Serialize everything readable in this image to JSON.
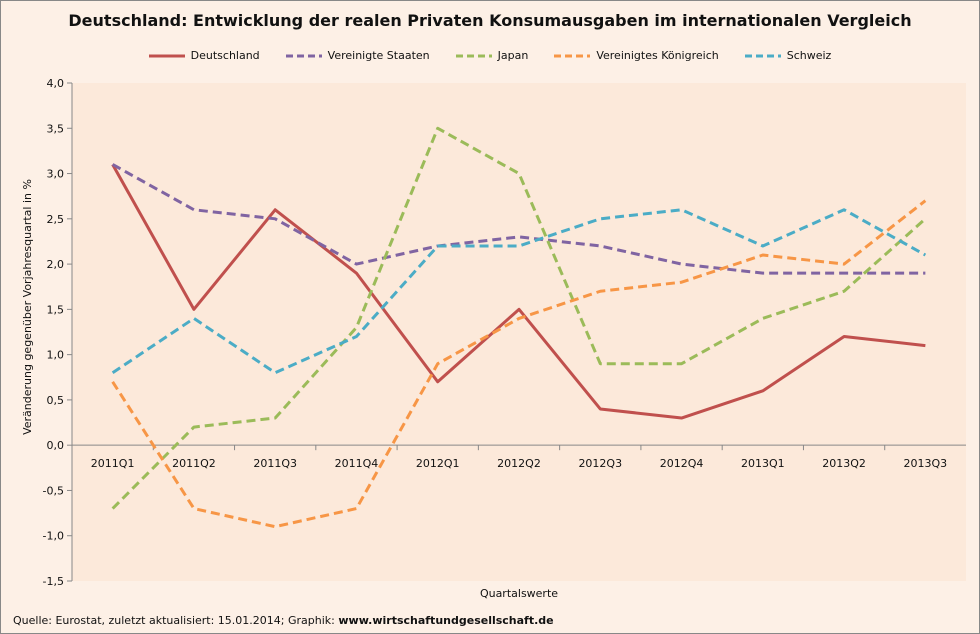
{
  "chart_data": {
    "type": "line",
    "title": "Deutschland: Entwicklung der realen Privaten Konsumausgaben im internationalen Vergleich",
    "xlabel": "Quartalswerte",
    "ylabel": "Veränderung gegenüber Vorjahresquartal in %",
    "categories": [
      "2011Q1",
      "2011Q2",
      "2011Q3",
      "2011Q4",
      "2012Q1",
      "2012Q2",
      "2012Q3",
      "2012Q4",
      "2013Q1",
      "2013Q2",
      "2013Q3"
    ],
    "ylim": [
      -1.5,
      4.0
    ],
    "yticks": [
      "4,0",
      "3,5",
      "3,0",
      "2,5",
      "2,0",
      "1,5",
      "1,0",
      "0,5",
      "0,0",
      "-0,5",
      "-1,0",
      "-1,5"
    ],
    "grid": false,
    "legend": "top",
    "series": [
      {
        "name": "Deutschland",
        "color": "#C0504D",
        "dash": false,
        "values": [
          3.1,
          1.5,
          2.6,
          1.9,
          0.7,
          1.5,
          0.4,
          0.3,
          0.6,
          1.2,
          1.1
        ]
      },
      {
        "name": "Vereinigte Staaten",
        "color": "#8064A2",
        "dash": true,
        "values": [
          3.1,
          2.6,
          2.5,
          2.0,
          2.2,
          2.3,
          2.2,
          2.0,
          1.9,
          1.9,
          1.9
        ]
      },
      {
        "name": "Japan",
        "color": "#9BBB59",
        "dash": true,
        "values": [
          -0.7,
          0.2,
          0.3,
          1.3,
          3.5,
          3.0,
          0.9,
          0.9,
          1.4,
          1.7,
          2.5
        ]
      },
      {
        "name": "Vereinigtes Königreich",
        "color": "#F79646",
        "dash": true,
        "values": [
          0.7,
          -0.7,
          -0.9,
          -0.7,
          0.9,
          1.4,
          1.7,
          1.8,
          2.1,
          2.0,
          2.7
        ]
      },
      {
        "name": "Schweiz",
        "color": "#4BACC6",
        "dash": true,
        "values": [
          0.8,
          1.4,
          0.8,
          1.2,
          2.2,
          2.2,
          2.5,
          2.6,
          2.2,
          2.6,
          2.1
        ]
      }
    ]
  },
  "footer": {
    "source": "Quelle: Eurostat, zuletzt aktualisiert: 15.01.2014; Graphik: ",
    "site": "www.wirtschaftundgesellschaft.de"
  }
}
